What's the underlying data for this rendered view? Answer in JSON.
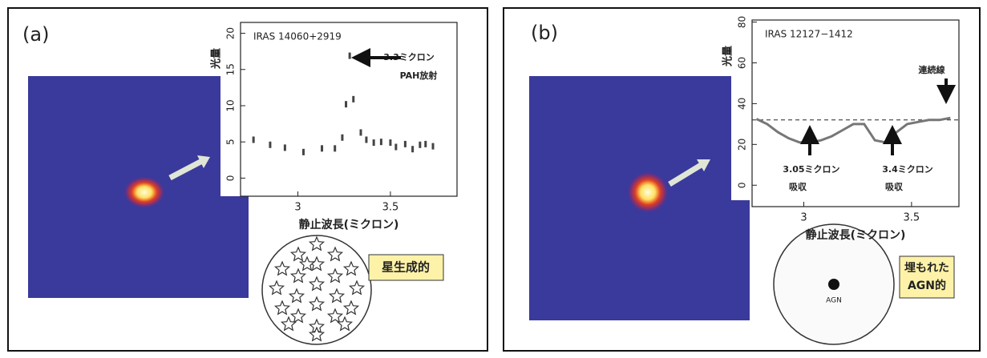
{
  "panels": [
    {
      "label": "(a)",
      "badge": [
        "星生成的"
      ]
    },
    {
      "label": "(b)",
      "badge": [
        "埋もれた",
        "AGN的"
      ],
      "diagram_label": "AGN"
    }
  ],
  "chart_data": [
    {
      "type": "scatter",
      "title": "IRAS 14060+2919",
      "xlabel": "静止波長(ミクロン)",
      "ylabel": "光量",
      "x": [
        2.76,
        2.85,
        2.93,
        3.03,
        3.13,
        3.2,
        3.24,
        3.26,
        3.28,
        3.3,
        3.34,
        3.37,
        3.41,
        3.45,
        3.5,
        3.53,
        3.58,
        3.62,
        3.66,
        3.69,
        3.73
      ],
      "values": [
        5.3,
        4.6,
        4.2,
        3.6,
        4.1,
        4.1,
        5.6,
        10.2,
        16.9,
        10.9,
        6.3,
        5.3,
        4.9,
        5.0,
        4.9,
        4.3,
        4.7,
        4.0,
        4.6,
        4.7,
        4.4
      ],
      "xlim": [
        2.69,
        3.86
      ],
      "ylim": [
        -2.5,
        21.5
      ],
      "xticks": [
        3,
        3.5
      ],
      "yticks": [
        0,
        5,
        10,
        15,
        20
      ],
      "annotations": [
        {
          "text": [
            "3.3ミクロン",
            "PAH放射"
          ]
        }
      ]
    },
    {
      "type": "line",
      "title": "IRAS 12127−1412",
      "xlabel": "静止波長(ミクロン)",
      "ylabel": "光量",
      "x": [
        2.78,
        2.83,
        2.88,
        2.93,
        2.98,
        3.03,
        3.08,
        3.13,
        3.18,
        3.23,
        3.28,
        3.33,
        3.38,
        3.43,
        3.48,
        3.53,
        3.58,
        3.63,
        3.68
      ],
      "values": [
        32.5,
        30,
        26,
        23,
        21,
        21,
        22,
        24,
        27,
        30,
        30,
        22,
        21,
        26,
        30,
        31,
        32,
        32,
        33
      ],
      "reference_line": 32,
      "xlim": [
        2.76,
        3.72
      ],
      "ylim": [
        -10.5,
        81
      ],
      "xticks": [
        3,
        3.5
      ],
      "yticks": [
        0,
        20,
        40,
        60,
        80
      ],
      "annotations": [
        {
          "text": [
            "連続線"
          ]
        },
        {
          "text": [
            "3.05ミクロン",
            "吸収"
          ]
        },
        {
          "text": [
            "3.4ミクロン",
            "吸収"
          ]
        }
      ]
    }
  ]
}
